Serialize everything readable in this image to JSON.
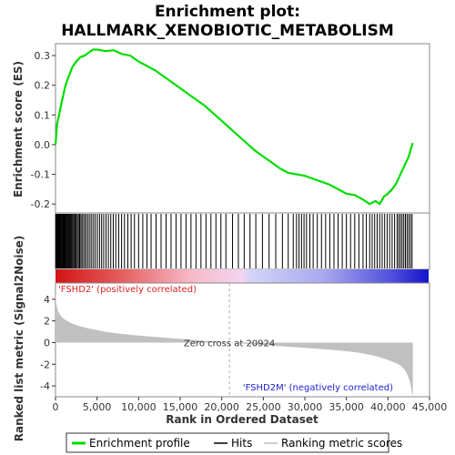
{
  "chart_data": {
    "type": "line",
    "title_line1": "Enrichment plot:",
    "title_line2": "HALLMARK_XENOBIOTIC_METABOLISM",
    "ylabel_top": "Enrichment score (ES)",
    "ylabel_bottom": "Ranked list metric (Signal2Noise)",
    "xlabel": "Rank in Ordered Dataset",
    "xlim": [
      0,
      45000
    ],
    "ylim_es": [
      -0.23,
      0.34
    ],
    "ylim_metric": [
      -5,
      5.5
    ],
    "x_ticks": [
      0,
      5000,
      10000,
      15000,
      20000,
      25000,
      30000,
      35000,
      40000,
      45000
    ],
    "x_tick_labels": [
      "0",
      "5,000",
      "10,000",
      "15,000",
      "20,000",
      "25,000",
      "30,000",
      "35,000",
      "40,000",
      "45,000"
    ],
    "es_ticks": [
      0.3,
      0.2,
      0.1,
      0.0,
      -0.1,
      -0.2
    ],
    "es_tick_labels": [
      "0.3",
      "0.2",
      "0.1",
      "0.0",
      "-0.1",
      "-0.2"
    ],
    "metric_ticks": [
      4,
      2,
      0,
      -2,
      -4
    ],
    "metric_tick_labels": [
      "4",
      "2",
      "0",
      "-2",
      "-4"
    ],
    "total_rank": 43000,
    "zero_cross": 20924,
    "zero_cross_label": "Zero cross at 20924",
    "pos_label": "'FSHD2' (positively correlated)",
    "neg_label": "'FSHD2M' (negatively correlated)",
    "es_series": {
      "name": "Enrichment profile",
      "x": [
        0,
        200,
        500,
        800,
        1200,
        1600,
        2000,
        2500,
        3000,
        3500,
        4000,
        4500,
        5000,
        6000,
        7000,
        8000,
        9000,
        10000,
        11000,
        12000,
        13000,
        14000,
        15000,
        16000,
        17000,
        18000,
        19000,
        20000,
        21000,
        22000,
        23000,
        24000,
        25000,
        26000,
        27000,
        28000,
        29000,
        30000,
        31000,
        32000,
        33000,
        34000,
        35000,
        36000,
        37000,
        37800,
        38500,
        39000,
        39500,
        40000,
        40500,
        41000,
        41500,
        42000,
        42500,
        42800,
        43000
      ],
      "y": [
        0.0,
        0.07,
        0.11,
        0.15,
        0.2,
        0.23,
        0.26,
        0.28,
        0.295,
        0.3,
        0.31,
        0.32,
        0.32,
        0.315,
        0.318,
        0.305,
        0.3,
        0.28,
        0.265,
        0.25,
        0.23,
        0.21,
        0.19,
        0.17,
        0.15,
        0.13,
        0.105,
        0.08,
        0.055,
        0.03,
        0.005,
        -0.02,
        -0.04,
        -0.06,
        -0.08,
        -0.095,
        -0.1,
        -0.105,
        -0.115,
        -0.125,
        -0.135,
        -0.15,
        -0.165,
        -0.17,
        -0.185,
        -0.2,
        -0.19,
        -0.2,
        -0.175,
        -0.165,
        -0.15,
        -0.13,
        -0.1,
        -0.07,
        -0.04,
        -0.01,
        0.005
      ]
    },
    "hits_series": {
      "name": "Hits",
      "positions": [
        30,
        80,
        150,
        230,
        300,
        380,
        460,
        540,
        620,
        700,
        790,
        880,
        960,
        1050,
        1150,
        1250,
        1350,
        1450,
        1550,
        1650,
        1760,
        1870,
        1980,
        2100,
        2220,
        2350,
        2480,
        2620,
        2760,
        2900,
        3050,
        3200,
        3380,
        3560,
        3750,
        3940,
        4150,
        4360,
        4580,
        4800,
        5050,
        5300,
        5550,
        5800,
        6080,
        6360,
        6650,
        6950,
        7250,
        7600,
        7950,
        8300,
        8700,
        9100,
        9500,
        10000,
        10500,
        11000,
        11500,
        12100,
        12700,
        13300,
        13900,
        14500,
        15100,
        15700,
        16300,
        16900,
        17500,
        18100,
        18700,
        19300,
        19900,
        20500,
        21300,
        22000,
        22700,
        23400,
        24100,
        24900,
        25700,
        26500,
        27300,
        28000,
        28600,
        29000,
        29300,
        29600,
        29900,
        30200,
        30600,
        31000,
        31500,
        32000,
        32500,
        33000,
        33500,
        34000,
        34500,
        35000,
        35500,
        36000,
        36500,
        37000,
        37400,
        37800,
        38100,
        38400,
        38700,
        39000,
        39300,
        39600,
        39900,
        40200,
        40500,
        40800,
        41100,
        41300,
        41500,
        41700,
        41900,
        42100,
        42300,
        42500,
        42700,
        42900
      ]
    },
    "metric_series": {
      "name": "Ranking metric scores",
      "x": [
        0,
        100,
        300,
        600,
        1000,
        1500,
        2000,
        3000,
        4000,
        5000,
        6000,
        8000,
        10000,
        12000,
        14000,
        16000,
        18000,
        20000,
        20924,
        22000,
        24000,
        26000,
        28000,
        30000,
        32000,
        34000,
        36000,
        37000,
        38000,
        39000,
        40000,
        41000,
        41500,
        42000,
        42300,
        42600,
        42800,
        43000
      ],
      "y": [
        4.8,
        3.6,
        2.9,
        2.5,
        2.2,
        1.95,
        1.75,
        1.5,
        1.3,
        1.15,
        1.0,
        0.8,
        0.65,
        0.52,
        0.4,
        0.28,
        0.17,
        0.06,
        0.0,
        -0.07,
        -0.18,
        -0.28,
        -0.38,
        -0.48,
        -0.6,
        -0.72,
        -0.88,
        -1.0,
        -1.15,
        -1.35,
        -1.6,
        -1.9,
        -2.1,
        -2.5,
        -2.9,
        -3.5,
        -4.2,
        -5.0
      ]
    },
    "legend": [
      {
        "label": "Enrichment profile",
        "color": "#00dd00"
      },
      {
        "label": "Hits",
        "color": "#000000"
      },
      {
        "label": "Ranking metric scores",
        "color": "#bbbbbb"
      }
    ],
    "colors": {
      "es_line": "#00dd00",
      "hit": "#000000",
      "metric_fill": "#c0c0c0",
      "pos_text": "#dd2222",
      "neg_text": "#2222cc"
    }
  }
}
